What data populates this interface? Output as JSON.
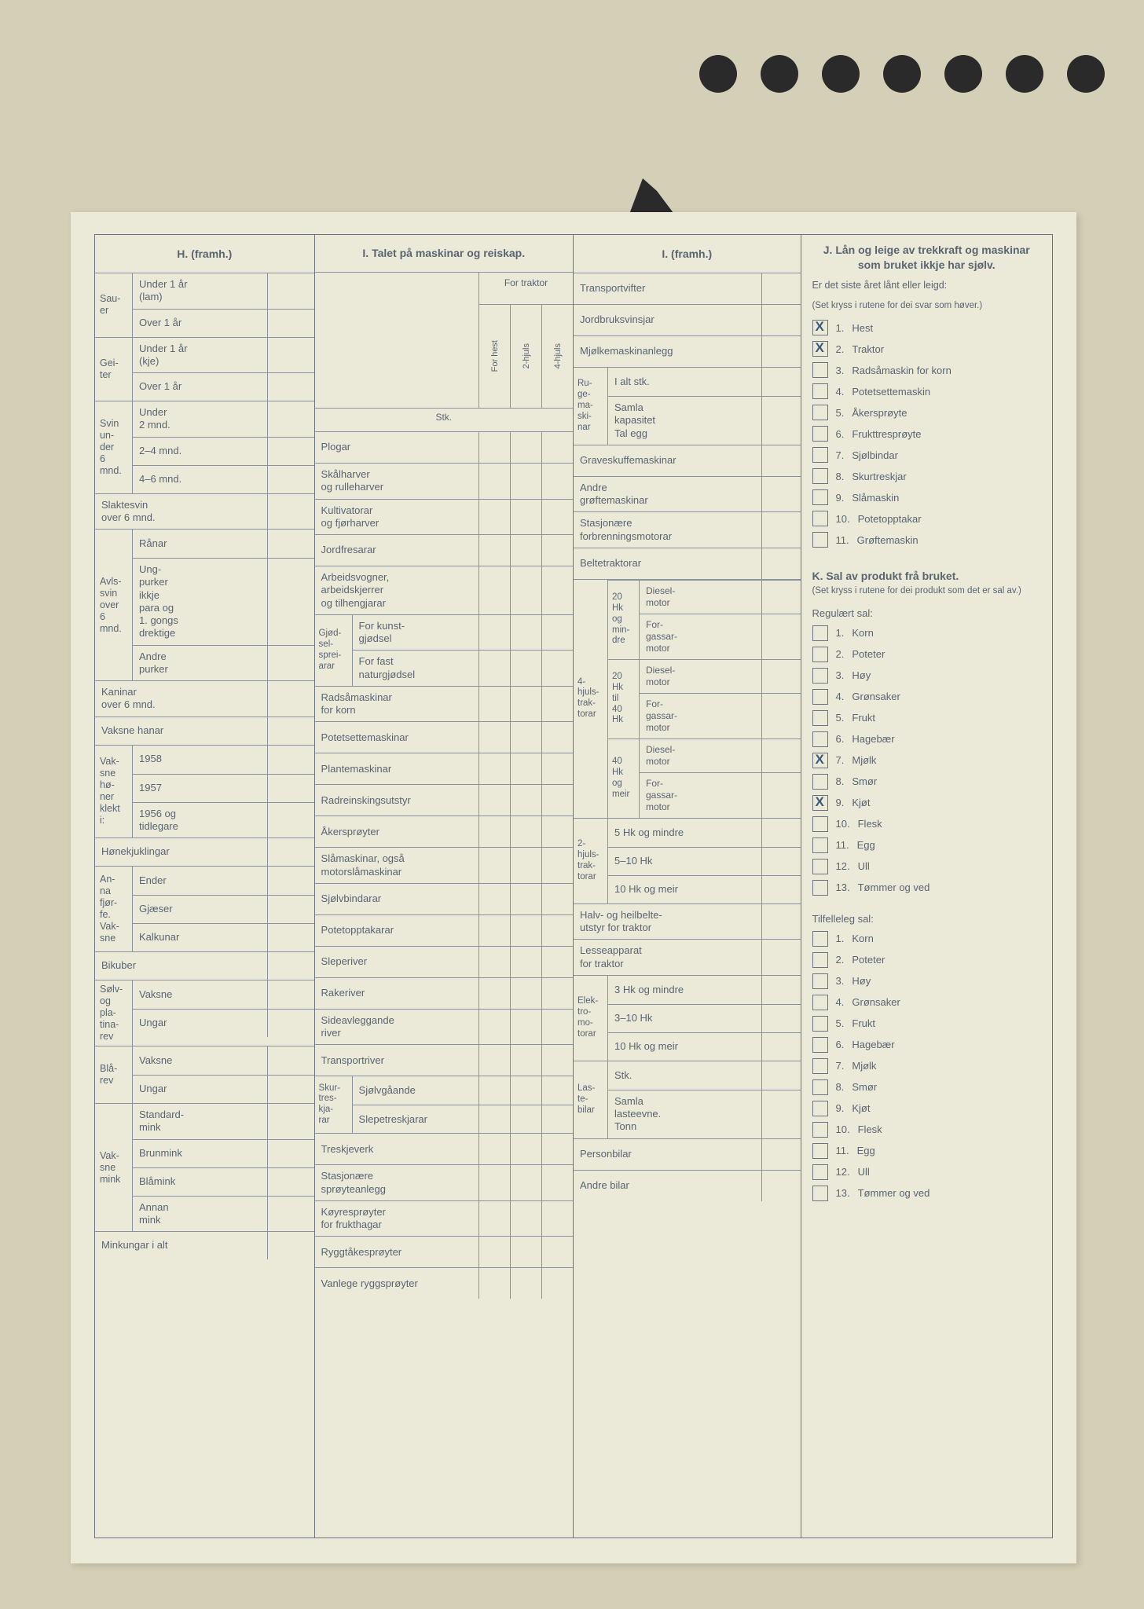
{
  "document": {
    "background_color": "#d4d0b8",
    "paper_color": "#ebe9d8",
    "ink_color": "#5a6572",
    "border_color": "#6b7280",
    "checkmark_color": "#3a5a7a",
    "font_family": "Arial",
    "base_font_size": 13
  },
  "holes": {
    "count": 7,
    "color": "#2a2a2a"
  },
  "sectionH": {
    "title": "H. (framh.)",
    "groups": [
      {
        "label": "Sau-\ner",
        "rows": [
          "Under 1 år\n(lam)",
          "Over 1 år"
        ]
      },
      {
        "label": "Gei-\nter",
        "rows": [
          "Under 1 år\n(kje)",
          "Over 1 år"
        ]
      },
      {
        "label": "Svin\nun-\nder\n6\nmnd.",
        "rows": [
          "Under\n2 mnd.",
          "2–4 mnd.",
          "4–6 mnd."
        ]
      }
    ],
    "simple_rows": [
      "Slaktesvin\nover 6 mnd."
    ],
    "avlssvin": {
      "label": "Avls-\nsvin\nover\n6\nmnd.",
      "rows": [
        "Rånar",
        "Ung-\npurker\nikkje\npara og\n1. gongs\ndrektige",
        "Andre\npurker"
      ]
    },
    "more_simple": [
      "Kaninar\nover 6 mnd.",
      "Vaksne hanar"
    ],
    "honer": {
      "label": "Vak-\nsne\nhø-\nner\nklekt\ni:",
      "rows": [
        "1958",
        "1957",
        "1956 og\ntidlegare"
      ]
    },
    "hone_row": "Hønekjuklingar",
    "fjorfe": {
      "label": "An-\nna\nfjør-\nfe.\nVak-\nsne",
      "rows": [
        "Ender",
        "Gjæser",
        "Kalkunar"
      ]
    },
    "bikuber": "Bikuber",
    "solvrev": {
      "label": "Sølv-\nog\npla-\ntina-\nrev",
      "rows": [
        "Vaksne",
        "Ungar"
      ]
    },
    "blarev": {
      "label": "Blå-\nrev",
      "rows": [
        "Vaksne",
        "Ungar"
      ]
    },
    "mink": {
      "label": "Vak-\nsne\nmink",
      "rows": [
        "Standard-\nmink",
        "Brunmink",
        "Blåmink",
        "Annan\nmink"
      ]
    },
    "mink_last": "Minkungar i alt"
  },
  "sectionI1": {
    "title": "I. Talet på maskinar\nog reiskap.",
    "col_header_traktor": "For\ntraktor",
    "col_headers": [
      "For hest",
      "2-hjuls",
      "4-hjuls"
    ],
    "stk": "Stk.",
    "rows": [
      "Plogar",
      "Skålharver\nog rulleharver",
      "Kultivatorar\nog fjørharver",
      "Jordfresarar",
      "Arbeidsvogner,\narbeidskjerrer\nog tilhengjarar"
    ],
    "gjodsel": {
      "label": "Gjød-\nsel-\nsprei-\narar",
      "rows": [
        "For kunst-\ngjødsel",
        "For fast\nnaturgjødsel"
      ]
    },
    "rows2": [
      "Radsåmaskinar\nfor korn",
      "Potetsettemaskinar",
      "Plantemaskinar",
      "Radreinskingsutstyr",
      "Åkersprøyter",
      "Slåmaskinar, også\nmotorslåmaskinar",
      "Sjølvbindarar",
      "Potetopptakarar",
      "Sleperiver",
      "Rakeriver",
      "Sideavleggande\nriver",
      "Transportriver"
    ],
    "skurtresk": {
      "label": "Skur-\ntres-\nkja-\nrar",
      "rows": [
        "Sjølvgåande",
        "Slepetreskjarar"
      ]
    },
    "rows3": [
      "Treskjeverk",
      "Stasjonære\nsprøyteanlegg",
      "Køyresprøyter\nfor frukthagar",
      "Ryggtåkesprøyter",
      "Vanlege ryggsprøyter"
    ]
  },
  "sectionI2": {
    "title": "I. (framh.)",
    "top_rows": [
      "Transportvifter",
      "Jordbruksvinsjar",
      "Mjølkemaskinanlegg"
    ],
    "ruge": {
      "label": "Ru-\nge-\nma-\nski-\nnar",
      "rows": [
        "I alt stk.",
        "Samla\nkapasitet\nTal egg"
      ]
    },
    "mid_rows": [
      "Graveskuffemaskinar",
      "Andre\ngrøftemaskinar",
      "Stasjonære\nforbrenningsmotorar",
      "Beltetraktorar"
    ],
    "hjuls4": {
      "label": "4-\nhjuls-\ntrak-\ntorar",
      "groups": [
        {
          "label": "20\nHk\nog\nmin-\ndre",
          "rows": [
            "Diesel-\nmotor",
            "For-\ngassar-\nmotor"
          ]
        },
        {
          "label": "20\nHk\ntil\n40\nHk",
          "rows": [
            "Diesel-\nmotor",
            "For-\ngassar-\nmotor"
          ]
        },
        {
          "label": "40\nHk\nog\nmeir",
          "rows": [
            "Diesel-\nmotor",
            "For-\ngassar-\nmotor"
          ]
        }
      ]
    },
    "hjuls2": {
      "label": "2-\nhjuls-\ntrak-\ntorar",
      "rows": [
        "5 Hk og mindre",
        "5–10 Hk",
        "10 Hk og meir"
      ]
    },
    "halv": "Halv- og heilbelte-\nutstyr for traktor",
    "lesse": "Lesseapparat\nfor traktor",
    "elektro": {
      "label": "Elek-\ntro-\nmo-\ntorar",
      "rows": [
        "3 Hk og mindre",
        "3–10 Hk",
        "10 Hk og meir"
      ]
    },
    "laste": {
      "label": "Las-\nte-\nbilar",
      "rows": [
        "Stk.",
        "Samla\nlasteevne.\nTonn"
      ]
    },
    "last_rows": [
      "Personbilar",
      "Andre bilar"
    ]
  },
  "sectionJ": {
    "title": "J. Lån og leige av trekkraft\nog maskinar som bruket\nikkje har sjølv.",
    "subtitle": "Er det siste året lånt eller leigd:",
    "note": "(Set kryss i rutene for dei svar som høver.)",
    "items": [
      {
        "n": "1.",
        "label": "Hest",
        "checked": true
      },
      {
        "n": "2.",
        "label": "Traktor",
        "checked": true
      },
      {
        "n": "3.",
        "label": "Radsåmaskin for korn",
        "checked": false
      },
      {
        "n": "4.",
        "label": "Potetsettemaskin",
        "checked": false
      },
      {
        "n": "5.",
        "label": "Åkersprøyte",
        "checked": false
      },
      {
        "n": "6.",
        "label": "Frukttresprøyte",
        "checked": false
      },
      {
        "n": "7.",
        "label": "Sjølbindar",
        "checked": false
      },
      {
        "n": "8.",
        "label": "Skurtreskjar",
        "checked": false
      },
      {
        "n": "9.",
        "label": "Slåmaskin",
        "checked": false
      },
      {
        "n": "10.",
        "label": "Potetopptakar",
        "checked": false
      },
      {
        "n": "11.",
        "label": "Grøftemaskin",
        "checked": false
      }
    ]
  },
  "sectionK": {
    "title": "K. Sal av produkt frå bruket.",
    "note": "(Set kryss i rutene for dei produkt\nsom det er sal av.)",
    "regular_head": "Regulært sal:",
    "regular": [
      {
        "n": "1.",
        "label": "Korn",
        "checked": false
      },
      {
        "n": "2.",
        "label": "Poteter",
        "checked": false
      },
      {
        "n": "3.",
        "label": "Høy",
        "checked": false
      },
      {
        "n": "4.",
        "label": "Grønsaker",
        "checked": false
      },
      {
        "n": "5.",
        "label": "Frukt",
        "checked": false
      },
      {
        "n": "6.",
        "label": "Hagebær",
        "checked": false
      },
      {
        "n": "7.",
        "label": "Mjølk",
        "checked": true
      },
      {
        "n": "8.",
        "label": "Smør",
        "checked": false
      },
      {
        "n": "9.",
        "label": "Kjøt",
        "checked": true
      },
      {
        "n": "10.",
        "label": "Flesk",
        "checked": false
      },
      {
        "n": "11.",
        "label": "Egg",
        "checked": false
      },
      {
        "n": "12.",
        "label": "Ull",
        "checked": false
      },
      {
        "n": "13.",
        "label": "Tømmer og ved",
        "checked": false
      }
    ],
    "tilfelle_head": "Tilfelleleg sal:",
    "tilfelle": [
      {
        "n": "1.",
        "label": "Korn"
      },
      {
        "n": "2.",
        "label": "Poteter"
      },
      {
        "n": "3.",
        "label": "Høy"
      },
      {
        "n": "4.",
        "label": "Grønsaker"
      },
      {
        "n": "5.",
        "label": "Frukt"
      },
      {
        "n": "6.",
        "label": "Hagebær"
      },
      {
        "n": "7.",
        "label": "Mjølk"
      },
      {
        "n": "8.",
        "label": "Smør"
      },
      {
        "n": "9.",
        "label": "Kjøt"
      },
      {
        "n": "10.",
        "label": "Flesk"
      },
      {
        "n": "11.",
        "label": "Egg"
      },
      {
        "n": "12.",
        "label": "Ull"
      },
      {
        "n": "13.",
        "label": "Tømmer og ved"
      }
    ]
  }
}
